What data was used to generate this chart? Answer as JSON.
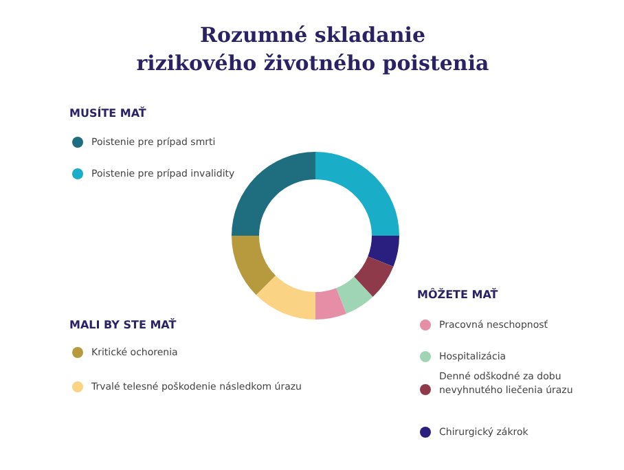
{
  "chart_data": {
    "type": "donut",
    "title": "Rozumné skladanie\nrizikového životného poistenia",
    "categories": [
      "Poistenie pre prípad invalidity",
      "Chirurgický zákrok",
      "Denné odškodné za dobu\nnevyhnutého liečenia úrazu",
      "Hospitalizácia",
      "Pracovná neschopnosť",
      "Trvalé telesné poškodenie následkom úrazu",
      "Kritické ochorenia",
      "Poistenie pre prípad smrti"
    ],
    "values": [
      25,
      6,
      7,
      6,
      6,
      12.5,
      12.5,
      25
    ],
    "colors": [
      "#1aadc8",
      "#2a1f7e",
      "#8e3a4a",
      "#9fd4b4",
      "#e58ea6",
      "#fbd385",
      "#b79a3e",
      "#1e6e80"
    ],
    "annotations": [
      "MUSÍTE MAŤ",
      "MALI BY STE MAŤ",
      "MÔŽETE MAŤ"
    ],
    "legend": "left"
  }
}
